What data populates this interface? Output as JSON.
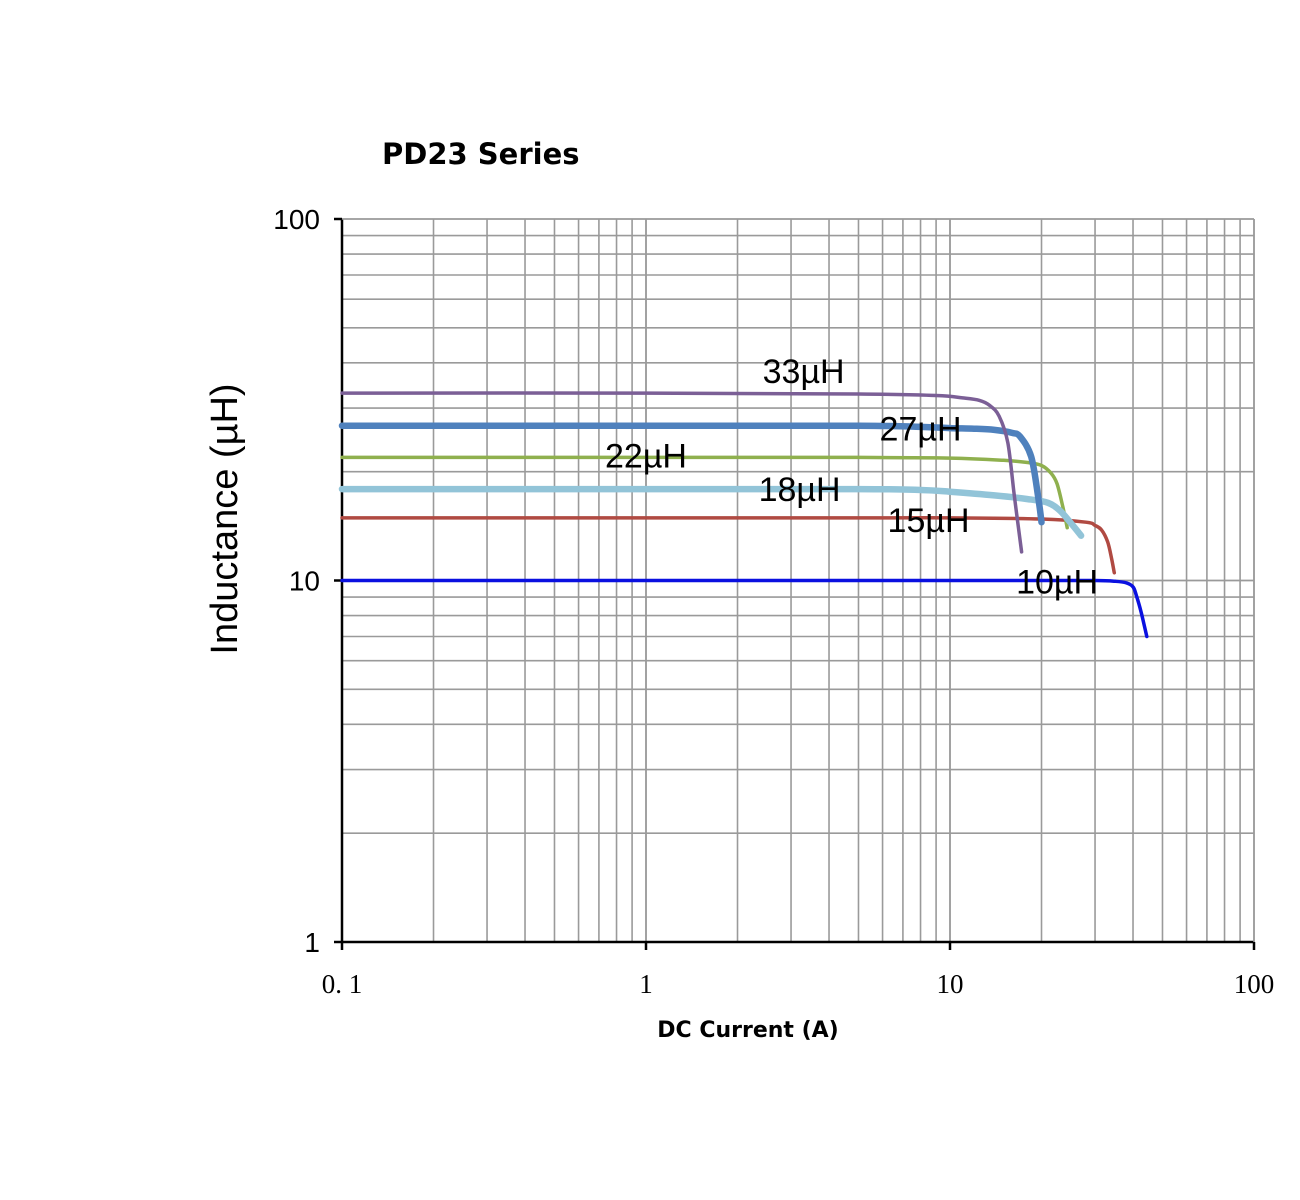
{
  "chart_data": {
    "type": "line",
    "title": "PD23 Series",
    "xlabel": "DC Current (A)",
    "ylabel": "Inductance (µH)",
    "x_scale": "log",
    "y_scale": "log",
    "xlim": [
      0.1,
      100
    ],
    "ylim": [
      1,
      100
    ],
    "x_tick_labels": [
      "0. 1",
      "1",
      "10",
      "100"
    ],
    "y_tick_labels": [
      "1",
      "10",
      "100"
    ],
    "grid": true,
    "series": [
      {
        "label": "33µH",
        "color": "#7b5f96",
        "x": [
          0.1,
          1,
          5,
          9,
          11,
          12.5,
          13.5,
          14.5,
          15.5,
          16.3,
          17.2
        ],
        "y": [
          33,
          33,
          32.8,
          32.5,
          32,
          31.5,
          30.5,
          28.5,
          24,
          17,
          12
        ]
      },
      {
        "label": "27µH",
        "color": "#4f81bd",
        "x": [
          0.1,
          1,
          5,
          8,
          10,
          12,
          14,
          16,
          17,
          18.5,
          19.5,
          20
        ],
        "y": [
          26.8,
          26.8,
          26.8,
          26.6,
          26.4,
          26.3,
          26.1,
          25.6,
          25,
          22,
          17,
          14.5
        ]
      },
      {
        "label": "22µH",
        "color": "#8fb04e",
        "x": [
          0.1,
          1,
          5,
          10,
          15,
          18,
          20,
          21.5,
          22.5,
          23.5,
          24.3
        ],
        "y": [
          21.9,
          21.9,
          21.9,
          21.8,
          21.5,
          21.2,
          20.8,
          19.8,
          18.5,
          16,
          14
        ]
      },
      {
        "label": "18µH",
        "color": "#92c4d8",
        "x": [
          0.1,
          1,
          5,
          8,
          10,
          14,
          18,
          21,
          23,
          25,
          27
        ],
        "y": [
          17.9,
          17.9,
          17.9,
          17.8,
          17.6,
          17.2,
          16.8,
          16.4,
          15.6,
          14.4,
          13.3
        ]
      },
      {
        "label": "15µH",
        "color": "#b04a42",
        "x": [
          0.1,
          1,
          5,
          10,
          20,
          28,
          30,
          31.5,
          33,
          34,
          34.7
        ],
        "y": [
          14.9,
          14.9,
          14.9,
          14.9,
          14.8,
          14.5,
          14.2,
          13.8,
          12.8,
          11.5,
          10.5
        ]
      },
      {
        "label": "10µH",
        "color": "#0a10e0",
        "x": [
          0.1,
          1,
          10,
          20,
          30,
          35,
          38,
          40,
          41,
          42.5,
          44.4
        ],
        "y": [
          10,
          10,
          10,
          10,
          10,
          9.95,
          9.85,
          9.6,
          9.1,
          8.2,
          7
        ]
      }
    ]
  }
}
